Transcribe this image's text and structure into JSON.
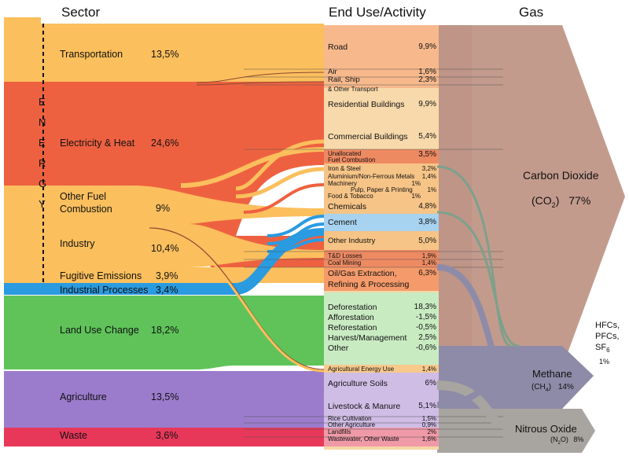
{
  "headers": {
    "sector": "Sector",
    "end_use": "End Use/Activity",
    "gas": "Gas"
  },
  "energy_label": [
    "E",
    "N",
    "E",
    "R",
    "G",
    "Y"
  ],
  "sectors": [
    {
      "name": "Transportation",
      "pct": "13,5%",
      "color": "#fbbf5d"
    },
    {
      "name": "Electricity & Heat",
      "pct": "24,6%",
      "color": "#ee6140"
    },
    {
      "name": "Other Fuel",
      "name2": "Combustion",
      "pct": "9%",
      "color": "#fbbf5d"
    },
    {
      "name": "Industry",
      "pct": "10,4%",
      "color": "#fbbf5d"
    },
    {
      "name": "Fugitive Emissions",
      "pct": "3,9%",
      "color": "#fbbf5d"
    },
    {
      "name": "Industrial Processes",
      "pct": "3,4%",
      "color": "#2a9be0"
    },
    {
      "name": "Land Use Change",
      "pct": "18,2%",
      "color": "#5fc35a"
    },
    {
      "name": "Agriculture",
      "pct": "13,5%",
      "color": "#9b7ccc"
    },
    {
      "name": "Waste",
      "pct": "3,6%",
      "color": "#e8385a"
    }
  ],
  "end_uses": [
    {
      "label": "Road",
      "pct": "9,9%"
    },
    {
      "label": "Air",
      "pct": "1,6%"
    },
    {
      "label": "Rail, Ship",
      "pct": "2,3%"
    },
    {
      "label": "& Other Transport",
      "pct": ""
    },
    {
      "label": "Residential Buildings",
      "pct": "9,9%"
    },
    {
      "label": "Commercial Buildings",
      "pct": "5,4%"
    },
    {
      "label": "Unallocated",
      "pct": "3,5%"
    },
    {
      "label": "Fuel Combustion",
      "pct": ""
    },
    {
      "label": "Iron & Steel",
      "pct": "3,2%"
    },
    {
      "label": "Aluminium/Non-Ferrous Metals",
      "pct": "1,4%"
    },
    {
      "label": "Machinery",
      "pct": "1%"
    },
    {
      "label": "Pulp, Paper & Printing",
      "pct": "1%"
    },
    {
      "label": "Food & Tobacco",
      "pct": "1%"
    },
    {
      "label": "Chemicals",
      "pct": "4,8%"
    },
    {
      "label": "Cement",
      "pct": "3,8%"
    },
    {
      "label": "Other Industry",
      "pct": "5,0%"
    },
    {
      "label": "T&D Losses",
      "pct": "1,9%"
    },
    {
      "label": "Coal Mining",
      "pct": "1,4%"
    },
    {
      "label": "Oil/Gas Extraction,",
      "pct": "6,3%"
    },
    {
      "label": "Refining & Processing",
      "pct": ""
    },
    {
      "label": "Deforestation",
      "pct": "18,3%"
    },
    {
      "label": "Afforestation",
      "pct": "-1,5%"
    },
    {
      "label": "Reforestation",
      "pct": "-0,5%"
    },
    {
      "label": "Harvest/Management",
      "pct": "2,5%"
    },
    {
      "label": "Other",
      "pct": "-0,6%"
    },
    {
      "label": "Agricultural Energy Use",
      "pct": "1,4%"
    },
    {
      "label": "Agriculture Soils",
      "pct": "6%"
    },
    {
      "label": "Livestock & Manure",
      "pct": "5,1%"
    },
    {
      "label": "Rice Cultivation",
      "pct": "1,5%"
    },
    {
      "label": "Other Agriculture",
      "pct": "0,9%"
    },
    {
      "label": "Landfills",
      "pct": "2%"
    },
    {
      "label": "Wastewater, Other Waste",
      "pct": "1,6%"
    }
  ],
  "gases": {
    "co2_name": "Carbon Dioxide",
    "co2_formula": "(CO",
    "co2_sub": "2",
    "co2_close": ")",
    "co2_pct": "77%",
    "f_line1": "HFCs,",
    "f_line2": "PFCs,",
    "f_line3": "SF",
    "f_sub": "6",
    "f_pct": "1%",
    "ch4_name": "Methane",
    "ch4_formula": "(CH",
    "ch4_sub": "4",
    "ch4_close": ")",
    "ch4_pct": "14%",
    "n2o_name": "Nitrous Oxide",
    "n2o_formula": "(N",
    "n2o_sub": "2",
    "n2o_close": "O)",
    "n2o_pct": "8%"
  },
  "colors": {
    "energy_orange": "#fbbf5d",
    "electricity_red": "#ee6140",
    "industrial_blue": "#2a9be0",
    "land_green": "#5fc35a",
    "agri_purple": "#9b7ccc",
    "waste_red": "#e8385a",
    "co2_brown": "#c39b8d",
    "ch4_gray": "#8e8ba9",
    "n2o_gray": "#a8a5a0"
  }
}
